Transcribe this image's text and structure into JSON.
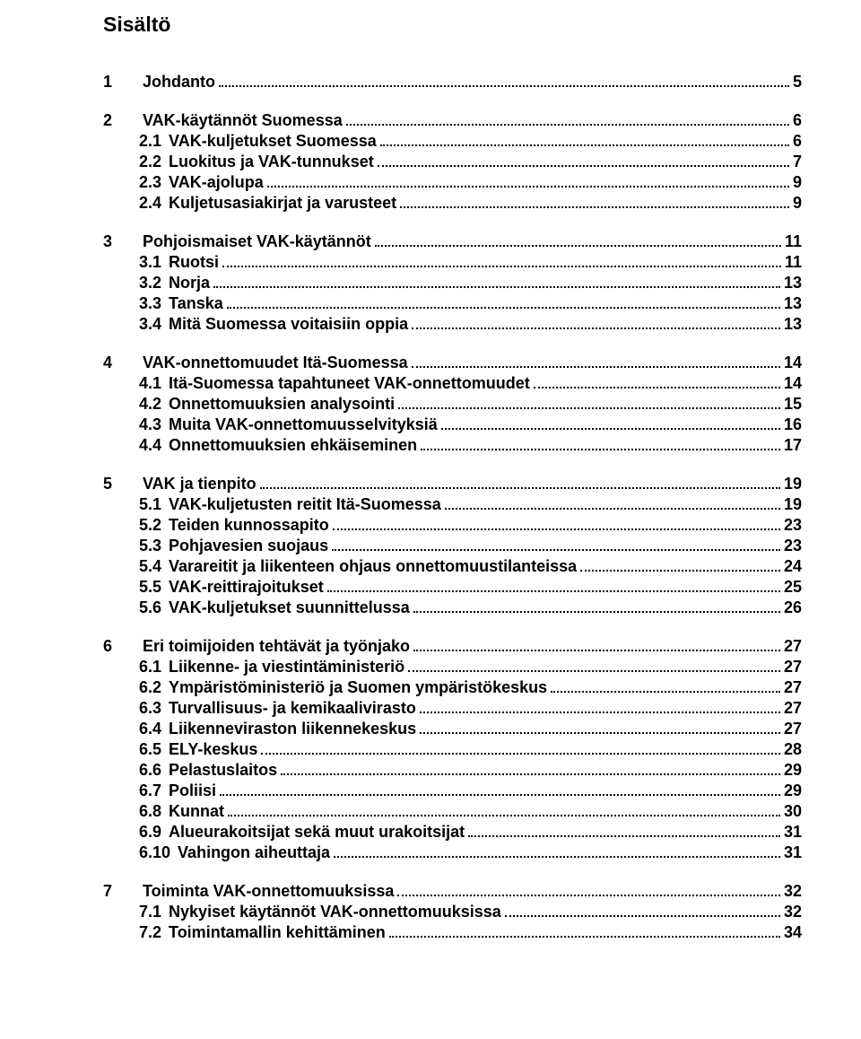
{
  "title": "Sisältö",
  "toc": [
    {
      "level": 1,
      "num": "1",
      "label": "Johdanto",
      "page": "5"
    },
    {
      "level": 1,
      "num": "2",
      "label": "VAK-käytännöt Suomessa",
      "page": "6"
    },
    {
      "level": 2,
      "num": "2.1",
      "label": "VAK-kuljetukset Suomessa",
      "page": "6"
    },
    {
      "level": 2,
      "num": "2.2",
      "label": "Luokitus ja VAK-tunnukset",
      "page": "7"
    },
    {
      "level": 2,
      "num": "2.3",
      "label": "VAK-ajolupa",
      "page": "9"
    },
    {
      "level": 2,
      "num": "2.4",
      "label": "Kuljetusasiakirjat ja varusteet",
      "page": "9"
    },
    {
      "level": 1,
      "num": "3",
      "label": "Pohjoismaiset VAK-käytännöt",
      "page": "11"
    },
    {
      "level": 2,
      "num": "3.1",
      "label": "Ruotsi",
      "page": "11"
    },
    {
      "level": 2,
      "num": "3.2",
      "label": "Norja",
      "page": "13"
    },
    {
      "level": 2,
      "num": "3.3",
      "label": "Tanska",
      "page": "13"
    },
    {
      "level": 2,
      "num": "3.4",
      "label": "Mitä Suomessa voitaisiin oppia",
      "page": "13"
    },
    {
      "level": 1,
      "num": "4",
      "label": "VAK-onnettomuudet Itä-Suomessa",
      "page": "14"
    },
    {
      "level": 2,
      "num": "4.1",
      "label": "Itä-Suomessa tapahtuneet VAK-onnettomuudet",
      "page": "14"
    },
    {
      "level": 2,
      "num": "4.2",
      "label": "Onnettomuuksien analysointi",
      "page": "15"
    },
    {
      "level": 2,
      "num": "4.3",
      "label": "Muita VAK-onnettomuusselvityksiä",
      "page": "16"
    },
    {
      "level": 2,
      "num": "4.4",
      "label": "Onnettomuuksien ehkäiseminen",
      "page": "17"
    },
    {
      "level": 1,
      "num": "5",
      "label": "VAK ja tienpito",
      "page": "19"
    },
    {
      "level": 2,
      "num": "5.1",
      "label": "VAK-kuljetusten reitit Itä-Suomessa",
      "page": "19"
    },
    {
      "level": 2,
      "num": "5.2",
      "label": "Teiden kunnossapito",
      "page": "23"
    },
    {
      "level": 2,
      "num": "5.3",
      "label": "Pohjavesien suojaus",
      "page": "23"
    },
    {
      "level": 2,
      "num": "5.4",
      "label": "Varareitit ja liikenteen ohjaus onnettomuustilanteissa",
      "page": "24"
    },
    {
      "level": 2,
      "num": "5.5",
      "label": "VAK-reittirajoitukset",
      "page": "25"
    },
    {
      "level": 2,
      "num": "5.6",
      "label": "VAK-kuljetukset suunnittelussa",
      "page": "26"
    },
    {
      "level": 1,
      "num": "6",
      "label": "Eri toimijoiden tehtävät ja työnjako",
      "page": "27"
    },
    {
      "level": 2,
      "num": "6.1",
      "label": "Liikenne- ja viestintäministeriö",
      "page": "27"
    },
    {
      "level": 2,
      "num": "6.2",
      "label": "Ympäristöministeriö ja Suomen ympäristökeskus",
      "page": "27"
    },
    {
      "level": 2,
      "num": "6.3",
      "label": "Turvallisuus- ja kemikaalivirasto",
      "page": "27"
    },
    {
      "level": 2,
      "num": "6.4",
      "label": "Liikenneviraston liikennekeskus",
      "page": "27"
    },
    {
      "level": 2,
      "num": "6.5",
      "label": "ELY-keskus",
      "page": "28"
    },
    {
      "level": 2,
      "num": "6.6",
      "label": "Pelastuslaitos",
      "page": "29"
    },
    {
      "level": 2,
      "num": "6.7",
      "label": "Poliisi",
      "page": "29"
    },
    {
      "level": 2,
      "num": "6.8",
      "label": "Kunnat",
      "page": "30"
    },
    {
      "level": 2,
      "num": "6.9",
      "label": "Alueurakoitsijat sekä muut urakoitsijat",
      "page": "31"
    },
    {
      "level": 2,
      "num": "6.10",
      "label": "Vahingon aiheuttaja",
      "page": "31"
    },
    {
      "level": 1,
      "num": "7",
      "label": "Toiminta VAK-onnettomuuksissa",
      "page": "32"
    },
    {
      "level": 2,
      "num": "7.1",
      "label": "Nykyiset käytännöt VAK-onnettomuuksissa",
      "page": "32"
    },
    {
      "level": 2,
      "num": "7.2",
      "label": "Toimintamallin kehittäminen",
      "page": "34"
    }
  ]
}
